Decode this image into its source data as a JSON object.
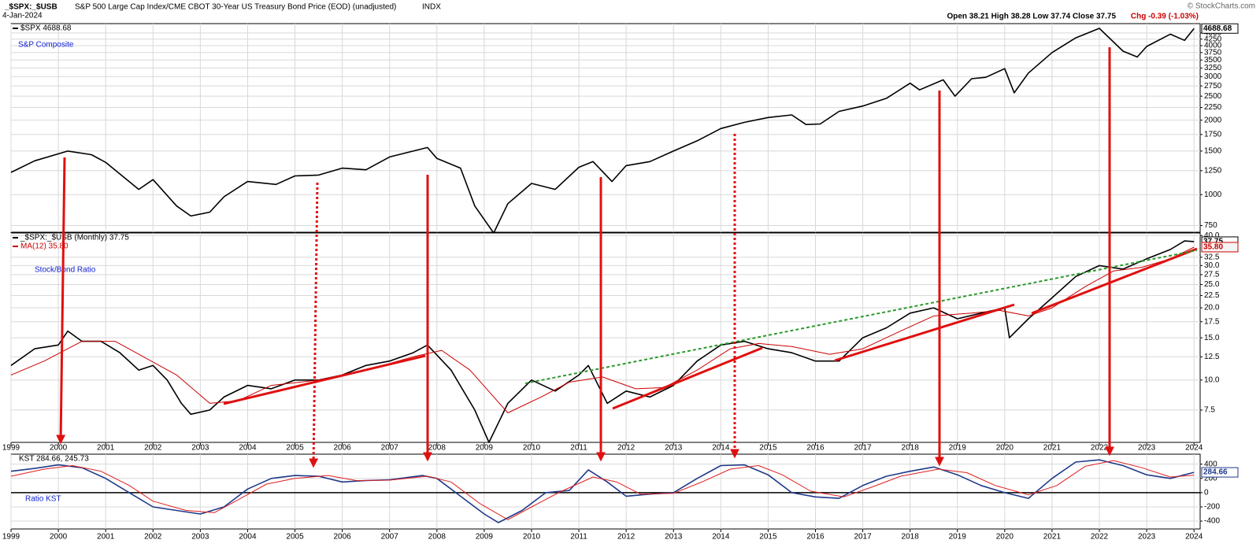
{
  "header": {
    "title": "_$SPX:_$USB",
    "subtitle": "S&P 500 Large Cap Index/CME CBOT 30-Year US Treasury Bond Price (EOD) (unadjusted)",
    "exchange": "INDX",
    "date": "4-Jan-2024",
    "quote": "Open 38.21 High 38.28 Low 37.74 Close 37.75",
    "change": "Chg -0.39 (-1.03%)",
    "credit": "© StockCharts.com"
  },
  "chart_data": [
    {
      "type": "line",
      "title": "S&P Composite",
      "log_scale": true,
      "grid": true,
      "xlim": [
        1999,
        2024.13
      ],
      "ylim": [
        705,
        4910
      ],
      "yticks": [
        750,
        1000,
        1250,
        1500,
        1750,
        2000,
        2250,
        2500,
        2750,
        3000,
        3250,
        3500,
        3750,
        4000,
        4250,
        4500
      ],
      "series": [
        {
          "name": "$SPX 4688.68",
          "color": "#000000",
          "last_label": "4688.68",
          "x": [
            1999.0,
            1999.5,
            2000.2,
            2000.7,
            2001.0,
            2001.7,
            2002.0,
            2002.5,
            2002.8,
            2003.2,
            2003.5,
            2004.0,
            2004.6,
            2005.0,
            2005.5,
            2006.0,
            2006.5,
            2007.0,
            2007.8,
            2008.0,
            2008.5,
            2008.8,
            2009.2,
            2009.5,
            2010.0,
            2010.5,
            2011.0,
            2011.3,
            2011.7,
            2012.0,
            2012.5,
            2013.0,
            2013.5,
            2014.0,
            2014.5,
            2015.0,
            2015.5,
            2015.8,
            2016.1,
            2016.5,
            2017.0,
            2017.5,
            2018.0,
            2018.2,
            2018.7,
            2018.95,
            2019.3,
            2019.6,
            2020.0,
            2020.2,
            2020.5,
            2021.0,
            2021.5,
            2022.0,
            2022.5,
            2022.8,
            2023.0,
            2023.5,
            2023.8,
            2024.0
          ],
          "values": [
            1230,
            1370,
            1500,
            1450,
            1350,
            1050,
            1150,
            900,
            820,
            850,
            980,
            1130,
            1100,
            1190,
            1200,
            1280,
            1260,
            1420,
            1550,
            1400,
            1280,
            900,
            700,
            920,
            1110,
            1050,
            1290,
            1360,
            1130,
            1310,
            1360,
            1500,
            1650,
            1850,
            1960,
            2050,
            2100,
            1920,
            1930,
            2170,
            2280,
            2450,
            2820,
            2650,
            2910,
            2500,
            2940,
            2980,
            3230,
            2580,
            3100,
            3750,
            4300,
            4700,
            3800,
            3600,
            3970,
            4450,
            4200,
            4690
          ]
        }
      ]
    },
    {
      "type": "line",
      "title": "Stock/Bond Ratio",
      "log_scale": true,
      "grid": true,
      "xlim": [
        1999,
        2024.13
      ],
      "ylim": [
        5.5,
        41
      ],
      "xticks": [
        1999,
        2000,
        2001,
        2002,
        2003,
        2004,
        2005,
        2006,
        2007,
        2008,
        2009,
        2010,
        2011,
        2012,
        2013,
        2014,
        2015,
        2016,
        2017,
        2018,
        2019,
        2020,
        2021,
        2022,
        2023,
        2024
      ],
      "yticks": [
        7.5,
        {
          "value": 10,
          "label": "10.0"
        },
        12.5,
        {
          "value": 15,
          "label": "15.0"
        },
        17.5,
        {
          "value": 20,
          "label": "20.0"
        },
        22.5,
        {
          "value": 25,
          "label": "25.0"
        },
        27.5,
        {
          "value": 30,
          "label": "30.0"
        },
        32.5,
        {
          "value": 40,
          "label": "40.0"
        }
      ],
      "series": [
        {
          "name": "_$SPX:_$USB (Monthly) 37.75",
          "color": "#000000",
          "last_label": "37.75",
          "x": [
            1999.0,
            1999.5,
            2000.0,
            2000.2,
            2000.5,
            2000.9,
            2001.3,
            2001.7,
            2002.0,
            2002.3,
            2002.6,
            2002.8,
            2003.2,
            2003.5,
            2004.0,
            2004.5,
            2005.0,
            2005.5,
            2006.0,
            2006.5,
            2007.0,
            2007.5,
            2007.8,
            2008.3,
            2008.8,
            2009.1,
            2009.5,
            2010.0,
            2010.5,
            2011.0,
            2011.2,
            2011.6,
            2012.0,
            2012.5,
            2013.0,
            2013.5,
            2014.0,
            2014.5,
            2015.0,
            2015.5,
            2016.0,
            2016.5,
            2017.0,
            2017.5,
            2018.0,
            2018.5,
            2019.0,
            2019.5,
            2020.0,
            2020.1,
            2020.5,
            2021.0,
            2021.5,
            2022.0,
            2022.5,
            2023.0,
            2023.5,
            2023.8,
            2024.0
          ],
          "values": [
            11.5,
            13.5,
            14,
            16,
            14.5,
            14.5,
            13,
            11,
            11.5,
            10,
            8,
            7.2,
            7.5,
            8.5,
            9.5,
            9.2,
            10,
            10,
            10.5,
            11.5,
            12,
            13,
            14,
            11,
            7.5,
            5.5,
            8,
            10,
            9,
            10.5,
            11.5,
            8,
            9,
            8.5,
            9.5,
            12,
            14,
            14.5,
            13.5,
            13,
            12,
            12,
            15,
            16.5,
            19,
            20,
            18,
            19,
            20,
            15,
            18,
            22,
            27,
            30,
            29,
            32,
            35,
            38,
            37.75
          ]
        },
        {
          "name": "MA(12) 35.80",
          "color": "#cc0000",
          "last_label": "35.80",
          "x": [
            1999.0,
            1999.7,
            2000.5,
            2001.2,
            2001.8,
            2002.5,
            2003.2,
            2003.8,
            2004.5,
            2005.5,
            2006.5,
            2007.5,
            2008.1,
            2008.7,
            2009.5,
            2010.2,
            2010.8,
            2011.5,
            2012.2,
            2012.8,
            2013.5,
            2014.2,
            2014.8,
            2015.5,
            2016.3,
            2017.0,
            2017.8,
            2018.5,
            2019.3,
            2019.9,
            2020.5,
            2021.0,
            2021.7,
            2022.3,
            2022.9,
            2023.5,
            2024.0
          ],
          "values": [
            10.5,
            12,
            14.5,
            14.5,
            12.5,
            10.5,
            8,
            8.2,
            9.5,
            10,
            11,
            12.5,
            13.3,
            11,
            7.3,
            8.5,
            9.8,
            10.3,
            9.2,
            9.3,
            11,
            13.5,
            14.2,
            13.8,
            12.8,
            13.5,
            16,
            18.5,
            19,
            19.5,
            18.5,
            20,
            24.5,
            28.5,
            29.5,
            32,
            35.8
          ]
        }
      ]
    },
    {
      "type": "line",
      "title": "Ratio KST",
      "legend": "KST 284.66, 245.73",
      "log_scale": false,
      "grid": true,
      "xlim": [
        1999,
        2024.13
      ],
      "ylim": [
        -510,
        540
      ],
      "xticks": [
        1999,
        2000,
        2001,
        2002,
        2003,
        2004,
        2005,
        2006,
        2007,
        2008,
        2009,
        2010,
        2011,
        2012,
        2013,
        2014,
        2015,
        2016,
        2017,
        2018,
        2019,
        2020,
        2021,
        2022,
        2023,
        2024
      ],
      "yticks": [
        -400,
        -200,
        0,
        200,
        400
      ],
      "series": [
        {
          "color": "#1f3a8a",
          "last_label": "284.66",
          "x": [
            1999.0,
            1999.5,
            2000.0,
            2000.5,
            2001.0,
            2001.5,
            2002.0,
            2002.5,
            2003.0,
            2003.5,
            2004.0,
            2004.5,
            2005.0,
            2005.5,
            2006.0,
            2006.5,
            2007.0,
            2007.7,
            2008.0,
            2008.5,
            2009.0,
            2009.3,
            2009.8,
            2010.3,
            2010.8,
            2011.2,
            2011.6,
            2012.0,
            2012.5,
            2013.0,
            2013.5,
            2014.0,
            2014.5,
            2015.0,
            2015.5,
            2016.0,
            2016.5,
            2017.0,
            2017.5,
            2018.0,
            2018.5,
            2019.0,
            2019.5,
            2020.0,
            2020.5,
            2021.0,
            2021.5,
            2022.0,
            2022.5,
            2023.0,
            2023.5,
            2024.0
          ],
          "values": [
            300,
            340,
            390,
            350,
            200,
            0,
            -200,
            -250,
            -300,
            -200,
            50,
            200,
            240,
            230,
            150,
            170,
            180,
            240,
            200,
            -50,
            -300,
            -420,
            -250,
            0,
            30,
            320,
            150,
            -50,
            -20,
            0,
            200,
            380,
            390,
            250,
            0,
            -60,
            -80,
            100,
            230,
            300,
            360,
            250,
            100,
            0,
            -80,
            200,
            430,
            460,
            380,
            250,
            200,
            285
          ]
        },
        {
          "color": "#e02020",
          "x": [
            1999.0,
            1999.7,
            2000.3,
            2000.9,
            2001.5,
            2002.0,
            2002.7,
            2003.3,
            2003.8,
            2004.4,
            2005.0,
            2005.7,
            2006.3,
            2007.0,
            2007.8,
            2008.3,
            2008.9,
            2009.5,
            2010.0,
            2010.6,
            2011.3,
            2011.8,
            2012.3,
            2013.0,
            2013.6,
            2014.2,
            2014.8,
            2015.3,
            2015.9,
            2016.6,
            2017.2,
            2017.8,
            2018.6,
            2019.2,
            2019.8,
            2020.5,
            2021.1,
            2021.7,
            2022.3,
            2022.9,
            2023.5,
            2024.0
          ],
          "values": [
            230,
            330,
            380,
            300,
            100,
            -120,
            -250,
            -280,
            -100,
            120,
            200,
            240,
            170,
            175,
            230,
            150,
            -150,
            -380,
            -200,
            10,
            220,
            150,
            -20,
            -10,
            150,
            330,
            380,
            250,
            20,
            -60,
            80,
            230,
            330,
            280,
            100,
            -30,
            100,
            370,
            450,
            350,
            220,
            245
          ]
        }
      ]
    }
  ]
}
